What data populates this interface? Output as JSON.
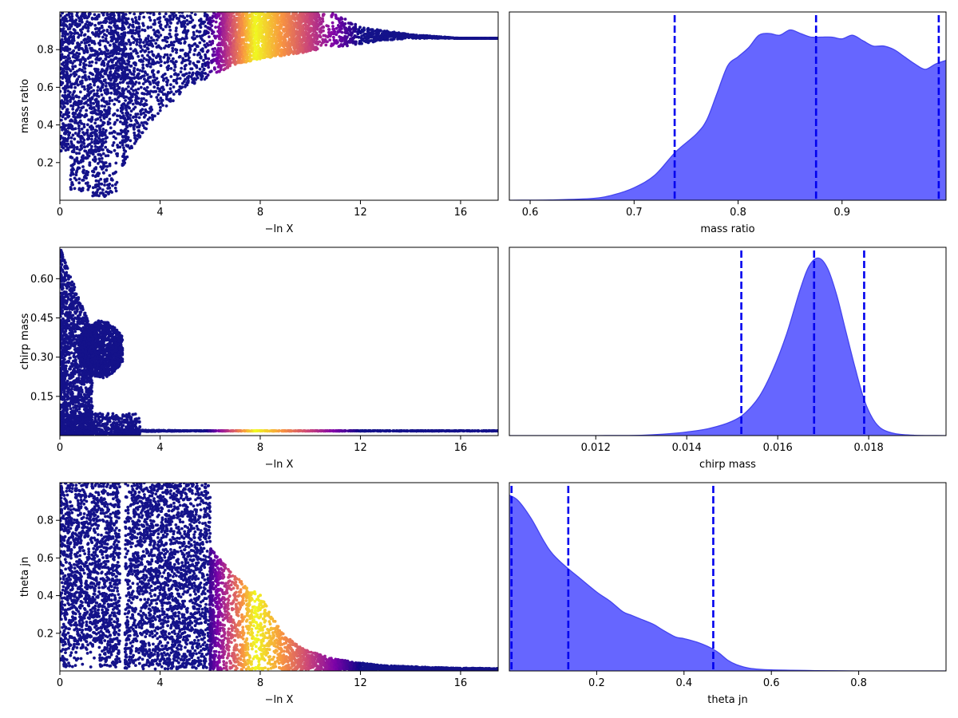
{
  "chart_data": [
    {
      "id": "trace-mass-ratio",
      "type": "scatter",
      "title": "",
      "xlabel": "−ln X",
      "ylabel": "mass ratio",
      "xlim": [
        0,
        17.5
      ],
      "ylim": [
        0.0,
        1.0
      ],
      "xticks": [
        0,
        4,
        8,
        12,
        16
      ],
      "xtick_labels": [
        "0",
        "4",
        "8",
        "12",
        "16"
      ],
      "yticks": [
        0.2,
        0.4,
        0.6,
        0.8
      ],
      "ytick_labels": [
        "0.2",
        "0.4",
        "0.6",
        "0.8"
      ],
      "colormap": "plasma",
      "color_peak_x": 7.8,
      "envelope": {
        "x": [
          0,
          1,
          2,
          3,
          4,
          5,
          6,
          7,
          8,
          9,
          10,
          11,
          12,
          13,
          14,
          15,
          16,
          17.5
        ],
        "lower": [
          0.25,
          0.35,
          0.05,
          0.3,
          0.47,
          0.58,
          0.66,
          0.72,
          0.75,
          0.77,
          0.79,
          0.81,
          0.83,
          0.85,
          0.86,
          0.86,
          0.86,
          0.86
        ],
        "upper": [
          1.0,
          1.0,
          1.0,
          1.0,
          1.0,
          1.0,
          1.0,
          1.0,
          1.0,
          1.0,
          1.0,
          0.99,
          0.92,
          0.9,
          0.88,
          0.87,
          0.86,
          0.86
        ]
      }
    },
    {
      "id": "posterior-mass-ratio",
      "type": "area",
      "title": "",
      "xlabel": "mass ratio",
      "ylabel": "",
      "xlim": [
        0.58,
        1.0
      ],
      "ylim": [
        0,
        1.05
      ],
      "xticks": [
        0.6,
        0.7,
        0.8,
        0.9
      ],
      "xtick_labels": [
        "0.6",
        "0.7",
        "0.8",
        "0.9"
      ],
      "fill_color": "#6666ff",
      "line_color": "#4444ee",
      "quantile_color": "#0000ee",
      "quantiles": [
        0.739,
        0.875,
        0.993
      ],
      "x": [
        0.58,
        0.62,
        0.66,
        0.68,
        0.7,
        0.72,
        0.74,
        0.76,
        0.77,
        0.78,
        0.79,
        0.8,
        0.81,
        0.82,
        0.83,
        0.84,
        0.85,
        0.86,
        0.87,
        0.88,
        0.89,
        0.9,
        0.91,
        0.92,
        0.93,
        0.94,
        0.95,
        0.96,
        0.97,
        0.98,
        0.99,
        1.0
      ],
      "y": [
        0.0,
        0.002,
        0.01,
        0.03,
        0.07,
        0.14,
        0.27,
        0.37,
        0.45,
        0.6,
        0.75,
        0.8,
        0.85,
        0.92,
        0.93,
        0.92,
        0.95,
        0.93,
        0.91,
        0.91,
        0.91,
        0.9,
        0.92,
        0.89,
        0.86,
        0.86,
        0.84,
        0.8,
        0.76,
        0.73,
        0.76,
        0.78
      ]
    },
    {
      "id": "trace-chirp-mass",
      "type": "scatter",
      "title": "",
      "xlabel": "−ln X",
      "ylabel": "chirp mass",
      "xlim": [
        0,
        17.5
      ],
      "ylim": [
        0.0,
        0.72
      ],
      "xticks": [
        0,
        4,
        8,
        12,
        16
      ],
      "xtick_labels": [
        "0",
        "4",
        "8",
        "12",
        "16"
      ],
      "yticks": [
        0.15,
        0.3,
        0.45,
        0.6
      ],
      "ytick_labels": [
        "0.15",
        "0.30",
        "0.45",
        "0.60"
      ],
      "colormap": "plasma",
      "color_peak_x": 7.8,
      "tail_value": 0.018
    },
    {
      "id": "posterior-chirp-mass",
      "type": "area",
      "title": "",
      "xlabel": "chirp mass",
      "ylabel": "",
      "xlim": [
        0.0101,
        0.0197
      ],
      "ylim": [
        0,
        1.05
      ],
      "xticks": [
        0.012,
        0.014,
        0.016,
        0.018
      ],
      "xtick_labels": [
        "0.012",
        "0.014",
        "0.016",
        "0.018"
      ],
      "fill_color": "#6666ff",
      "line_color": "#4444ee",
      "quantile_color": "#0000ee",
      "quantiles": [
        0.0152,
        0.0168,
        0.0179
      ],
      "x": [
        0.0101,
        0.012,
        0.013,
        0.0135,
        0.014,
        0.0145,
        0.015,
        0.0153,
        0.0156,
        0.0159,
        0.0162,
        0.0165,
        0.0167,
        0.0169,
        0.0171,
        0.0173,
        0.0175,
        0.0177,
        0.0179,
        0.0181,
        0.0183,
        0.0186,
        0.019,
        0.0197
      ],
      "y": [
        0.0,
        0.0,
        0.002,
        0.008,
        0.02,
        0.04,
        0.08,
        0.13,
        0.22,
        0.37,
        0.57,
        0.82,
        0.95,
        0.99,
        0.93,
        0.78,
        0.58,
        0.38,
        0.2,
        0.09,
        0.035,
        0.01,
        0.002,
        0.0
      ]
    },
    {
      "id": "trace-theta-jn",
      "type": "scatter",
      "title": "",
      "xlabel": "−ln X",
      "ylabel": "theta jn",
      "xlim": [
        0,
        17.5
      ],
      "ylim": [
        0.0,
        1.0
      ],
      "xticks": [
        0,
        4,
        8,
        12,
        16
      ],
      "xtick_labels": [
        "0",
        "4",
        "8",
        "12",
        "16"
      ],
      "yticks": [
        0.2,
        0.4,
        0.6,
        0.8
      ],
      "ytick_labels": [
        "0.2",
        "0.4",
        "0.6",
        "0.8"
      ],
      "colormap": "plasma",
      "color_peak_x": 7.8,
      "envelope": {
        "x": [
          6,
          7,
          8,
          9,
          10,
          11,
          12,
          13,
          14,
          15,
          16,
          17.5
        ],
        "upper": [
          0.65,
          0.5,
          0.4,
          0.18,
          0.1,
          0.06,
          0.04,
          0.025,
          0.02,
          0.015,
          0.012,
          0.01
        ]
      }
    },
    {
      "id": "posterior-theta-jn",
      "type": "area",
      "title": "",
      "xlabel": "theta jn",
      "ylabel": "",
      "xlim": [
        0.0,
        1.0
      ],
      "ylim": [
        0,
        1.05
      ],
      "xticks": [
        0.2,
        0.4,
        0.6,
        0.8
      ],
      "xtick_labels": [
        "0.2",
        "0.4",
        "0.6",
        "0.8"
      ],
      "fill_color": "#6666ff",
      "line_color": "#4444ee",
      "quantile_color": "#0000ee",
      "quantiles": [
        0.005,
        0.135,
        0.467
      ],
      "x": [
        0.0,
        0.02,
        0.05,
        0.08,
        0.1,
        0.13,
        0.16,
        0.2,
        0.23,
        0.26,
        0.28,
        0.3,
        0.33,
        0.35,
        0.38,
        0.4,
        0.43,
        0.46,
        0.48,
        0.5,
        0.52,
        0.55,
        0.6,
        0.7,
        0.8,
        0.9,
        1.0
      ],
      "y": [
        0.98,
        0.95,
        0.85,
        0.72,
        0.65,
        0.58,
        0.52,
        0.44,
        0.39,
        0.33,
        0.31,
        0.29,
        0.26,
        0.23,
        0.19,
        0.18,
        0.16,
        0.13,
        0.1,
        0.06,
        0.035,
        0.015,
        0.006,
        0.002,
        0.0,
        0.0,
        0.0
      ]
    }
  ]
}
